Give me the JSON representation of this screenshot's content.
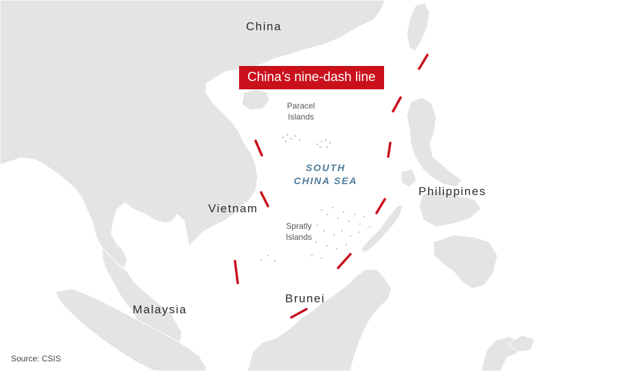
{
  "title": "China’s nine-dash line",
  "countries": {
    "china": "China",
    "vietnam": "Vietnam",
    "philippines": "Philippines",
    "malaysia": "Malaysia",
    "brunei": "Brunei"
  },
  "islands": {
    "paracel_1": "Paracel",
    "paracel_2": "Islands",
    "spratly_1": "Spratly",
    "spratly_2": "Islands"
  },
  "sea": {
    "line1": "SOUTH",
    "line2": "CHINA SEA"
  },
  "source": "Source: CSIS",
  "colors": {
    "land": "#e4e4e4",
    "border": "#ffffff",
    "water": "#ffffff",
    "dash_line": "#c9101b",
    "title_bg": "#c9101b",
    "sea_label": "#4d7a9a"
  }
}
